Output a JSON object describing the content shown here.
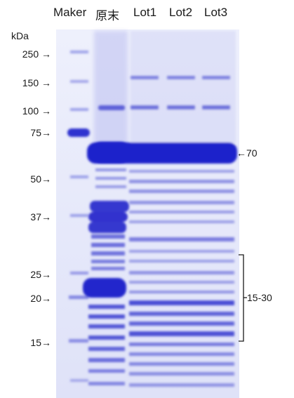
{
  "lane_labels": [
    "Maker",
    "原末",
    "Lot1",
    "Lot2",
    "Lot3"
  ],
  "unit_label": "kDa",
  "marker_labels": [
    "250 →",
    "150 →",
    "100 →",
    "75→",
    "50→",
    "37→",
    "25→",
    "20→",
    "15→"
  ],
  "right_labels": {
    "band": "←70",
    "range": "15-30"
  },
  "colors": {
    "gel_bg": "#e6e9fb",
    "band_dark": "#2b2fcf",
    "band_mid": "#6f73dd",
    "band_light": "#a6aaeb"
  }
}
